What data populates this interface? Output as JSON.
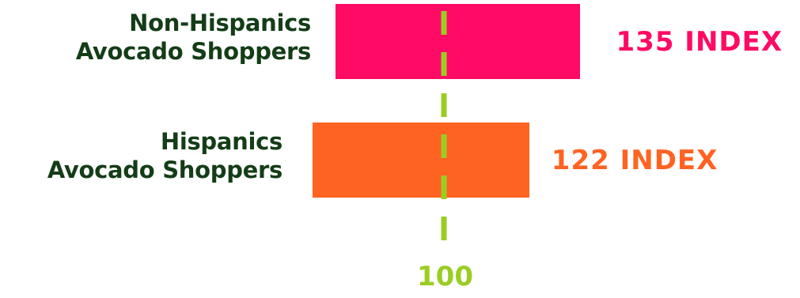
{
  "chart_data": {
    "type": "bar",
    "orientation": "horizontal",
    "categories": [
      [
        "Non-Hispanics",
        "Avocado Shoppers"
      ],
      [
        "Hispanics",
        "Avocado Shoppers"
      ]
    ],
    "values": [
      135,
      122
    ],
    "value_labels": [
      "135 INDEX",
      "122 INDEX"
    ],
    "bar_colors": [
      "#ff0a64",
      "#ff6322"
    ],
    "reference_line": {
      "value": 100,
      "label": "100",
      "color": "#9acd22",
      "style": "dashed"
    },
    "label_color": "#143d17",
    "title": "",
    "xlabel": "",
    "ylabel": "",
    "grid": false,
    "legend": "none"
  }
}
